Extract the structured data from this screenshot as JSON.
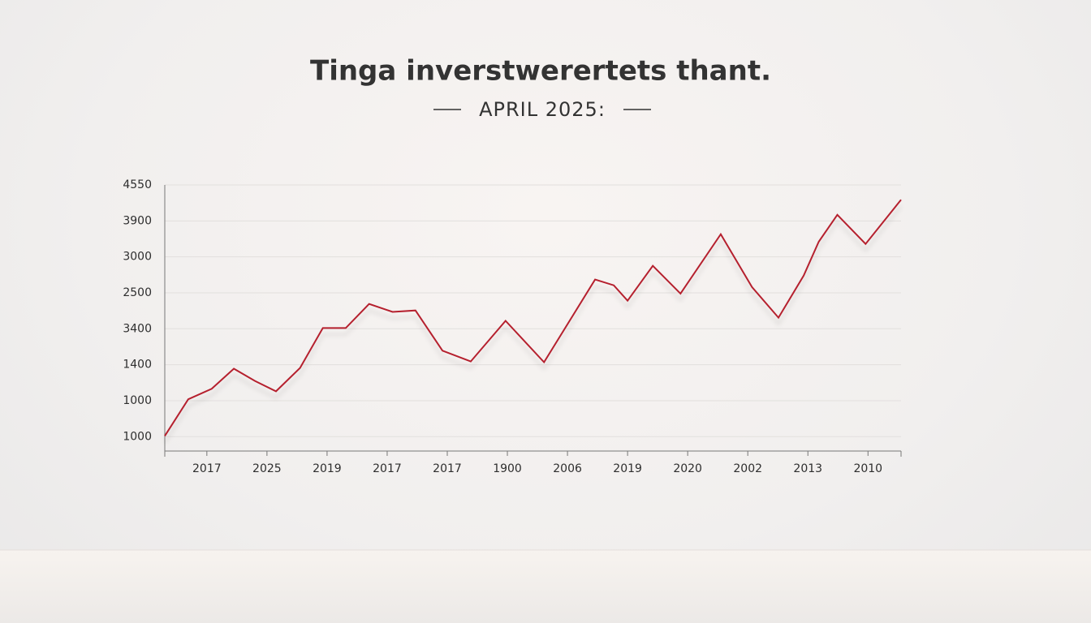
{
  "chart_data": {
    "type": "line",
    "title": "Tinga inverstwerertets thant.",
    "subtitle": "APRIL 2025:",
    "xlim": [
      -0.7,
      11.55
    ],
    "xticks": [
      {
        "value": 0,
        "label": "2017"
      },
      {
        "value": 1,
        "label": "2025"
      },
      {
        "value": 2,
        "label": "2019"
      },
      {
        "value": 3,
        "label": "2017"
      },
      {
        "value": 4,
        "label": "2017"
      },
      {
        "value": 5,
        "label": "1900"
      },
      {
        "value": 6,
        "label": "2006"
      },
      {
        "value": 7,
        "label": "2019"
      },
      {
        "value": 8,
        "label": "2020"
      },
      {
        "value": 9,
        "label": "2002"
      },
      {
        "value": 10,
        "label": "2013"
      },
      {
        "value": 11,
        "label": "2010"
      }
    ],
    "ylim": [
      -0.4,
      7
    ],
    "yticks": [
      {
        "value": 0,
        "label": "1000"
      },
      {
        "value": 1,
        "label": "1000"
      },
      {
        "value": 2,
        "label": "1400"
      },
      {
        "value": 3,
        "label": "3400"
      },
      {
        "value": 4,
        "label": "2500"
      },
      {
        "value": 5,
        "label": "3000"
      },
      {
        "value": 6,
        "label": "3900"
      },
      {
        "value": 7,
        "label": "4550"
      }
    ],
    "grid": true,
    "color": "#b5202e",
    "x": [
      -0.7,
      -0.31,
      0.08,
      0.45,
      0.8,
      1.15,
      1.55,
      1.93,
      2.31,
      2.7,
      3.09,
      3.47,
      3.92,
      4.39,
      4.97,
      5.61,
      6.46,
      6.77,
      7.0,
      7.42,
      7.88,
      8.55,
      9.07,
      9.51,
      9.93,
      10.18,
      10.49,
      10.96,
      11.55
    ],
    "values": [
      0.02,
      1.04,
      1.33,
      1.89,
      1.55,
      1.26,
      1.91,
      3.02,
      3.02,
      3.69,
      3.47,
      3.51,
      2.39,
      2.09,
      3.22,
      2.07,
      4.37,
      4.21,
      3.78,
      4.75,
      3.98,
      5.63,
      4.16,
      3.31,
      4.48,
      5.42,
      6.17,
      5.36,
      6.59
    ]
  }
}
